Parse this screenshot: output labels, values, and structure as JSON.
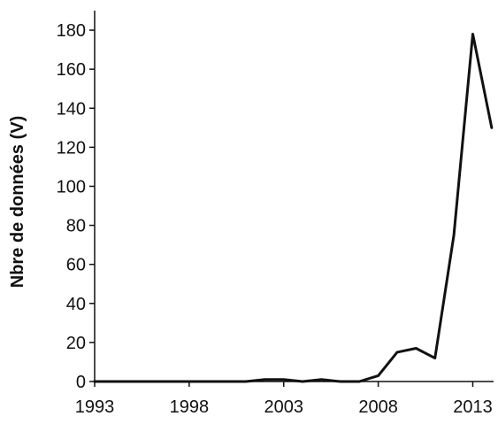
{
  "chart_data": {
    "type": "line",
    "title": "",
    "xlabel": "",
    "ylabel": "Nbre de données (V)",
    "x_ticks": [
      1993,
      1998,
      2003,
      2008,
      2013
    ],
    "y_ticks": [
      0,
      20,
      40,
      60,
      80,
      100,
      120,
      140,
      160,
      180
    ],
    "xlim": [
      1993,
      2014.1
    ],
    "ylim": [
      0,
      190
    ],
    "grid": false,
    "legend": "none",
    "series": [
      {
        "x": [
          1993,
          1994,
          1995,
          1996,
          1997,
          1998,
          1999,
          2000,
          2001,
          2002,
          2003,
          2004,
          2005,
          2006,
          2007,
          2008,
          2009,
          2010,
          2011,
          2012,
          2013,
          2014
        ],
        "y": [
          0,
          0,
          0,
          0,
          0,
          0,
          0,
          0,
          0,
          1,
          1,
          0,
          1,
          0,
          0,
          3,
          15,
          17,
          12,
          75,
          178,
          130
        ]
      }
    ],
    "colors": {
      "line": "#111111",
      "axis": "#111111"
    }
  }
}
